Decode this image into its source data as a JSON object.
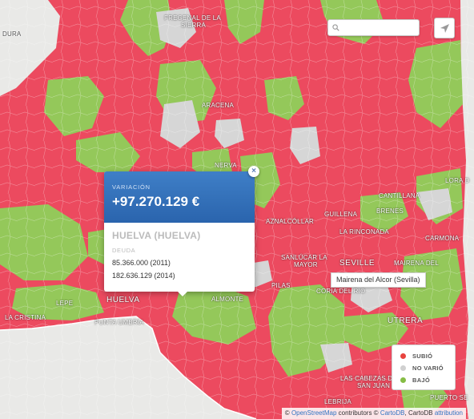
{
  "colors": {
    "increase": "#ec4a5f",
    "no_change": "#d6d6d6",
    "decrease": "#94c85a",
    "sea": "#e9e9e7",
    "popup_header": "#3370b8"
  },
  "search": {
    "placeholder": "",
    "icon": "search-icon"
  },
  "locate": {
    "icon": "paper-plane-icon"
  },
  "places": [
    {
      "name": "FREGENAL DE LA",
      "kind": "town"
    },
    {
      "name": "SIERRA",
      "kind": "town"
    },
    {
      "name": "DURA",
      "kind": "town"
    },
    {
      "name": "ARACENA",
      "kind": "town"
    },
    {
      "name": "NERVA",
      "kind": "town"
    },
    {
      "name": "LORA D",
      "kind": "town"
    },
    {
      "name": "CANTILLANA",
      "kind": "town"
    },
    {
      "name": "BRENES",
      "kind": "town"
    },
    {
      "name": "AZNALCÓLLAR",
      "kind": "town"
    },
    {
      "name": "GUILLENA",
      "kind": "town"
    },
    {
      "name": "LA RINCONADA",
      "kind": "town"
    },
    {
      "name": "CARMONA",
      "kind": "town"
    },
    {
      "name": "SANLÚCAR LA",
      "kind": "town"
    },
    {
      "name": "MAYOR",
      "kind": "town"
    },
    {
      "name": "SEVILLE",
      "kind": "city"
    },
    {
      "name": "MAIRENA DEL",
      "kind": "town"
    },
    {
      "name": "PILAS",
      "kind": "town"
    },
    {
      "name": "CORIA DEL RIO",
      "kind": "town"
    },
    {
      "name": "ALMONTE",
      "kind": "town"
    },
    {
      "name": "LEPE",
      "kind": "town"
    },
    {
      "name": "HUELVA",
      "kind": "city"
    },
    {
      "name": "LA CRISTINA",
      "kind": "town"
    },
    {
      "name": "PUNTA UMBRÍA",
      "kind": "town"
    },
    {
      "name": "UTRERA",
      "kind": "city"
    },
    {
      "name": "LAS CABEZAS DE",
      "kind": "town"
    },
    {
      "name": "SAN JUAN",
      "kind": "town"
    },
    {
      "name": "LEBRIJA",
      "kind": "town"
    },
    {
      "name": "PUERTO SE",
      "kind": "town"
    }
  ],
  "popup": {
    "header_label": "VARIACIÓN",
    "header_value": "+97.270.129 €",
    "name": "HUELVA (HUELVA)",
    "section_label": "DEUDA",
    "line1": "85.366.000 (2011)",
    "line2": "182.636.129 (2014)",
    "close_icon": "close-icon"
  },
  "tooltip": {
    "text": "Mairena del Alcor (Sevilla)"
  },
  "legend": {
    "items": [
      {
        "label": "SUBIÓ",
        "color": "#e8443f"
      },
      {
        "label": "NO VARIÓ",
        "color": "#d0d0d0"
      },
      {
        "label": "BAJÓ",
        "color": "#86bd45"
      }
    ]
  },
  "attribution": {
    "prefix": "©",
    "osm": "OpenStreetMap",
    "contributors": "contributors ©",
    "cartodb": "CartoDB",
    "cartodb_plain": ", CartoDB",
    "attribution": "attribution"
  }
}
